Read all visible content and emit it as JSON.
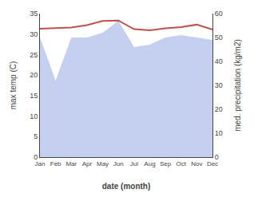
{
  "chart_data": {
    "type": "line",
    "xlabel": "date (month)",
    "ylabel": "max temp (C)",
    "y2label": "med. precipitation (kg/m2)",
    "categories": [
      "Jan",
      "Feb",
      "Mar",
      "Apr",
      "May",
      "Jun",
      "Jul",
      "Aug",
      "Sep",
      "Oct",
      "Nov",
      "Dec"
    ],
    "series": [
      {
        "type": "area",
        "axis": "y2",
        "color": "#c5cff0",
        "values": [
          50,
          32,
          50,
          50,
          52,
          57,
          46,
          47,
          50,
          51,
          50,
          49
        ]
      },
      {
        "type": "line",
        "color": "#c0504d",
        "values": [
          31.3,
          31.4,
          31.6,
          32.2,
          33.2,
          33.3,
          31.2,
          30.9,
          31.4,
          31.7,
          32.3,
          31.1
        ]
      }
    ],
    "ylim": [
      0,
      35
    ],
    "yticks": [
      0,
      5,
      10,
      15,
      20,
      25,
      30,
      35
    ],
    "y2lim": [
      0,
      60
    ],
    "y2ticks": [
      0,
      10,
      20,
      30,
      40,
      50,
      60
    ],
    "grid": false
  }
}
